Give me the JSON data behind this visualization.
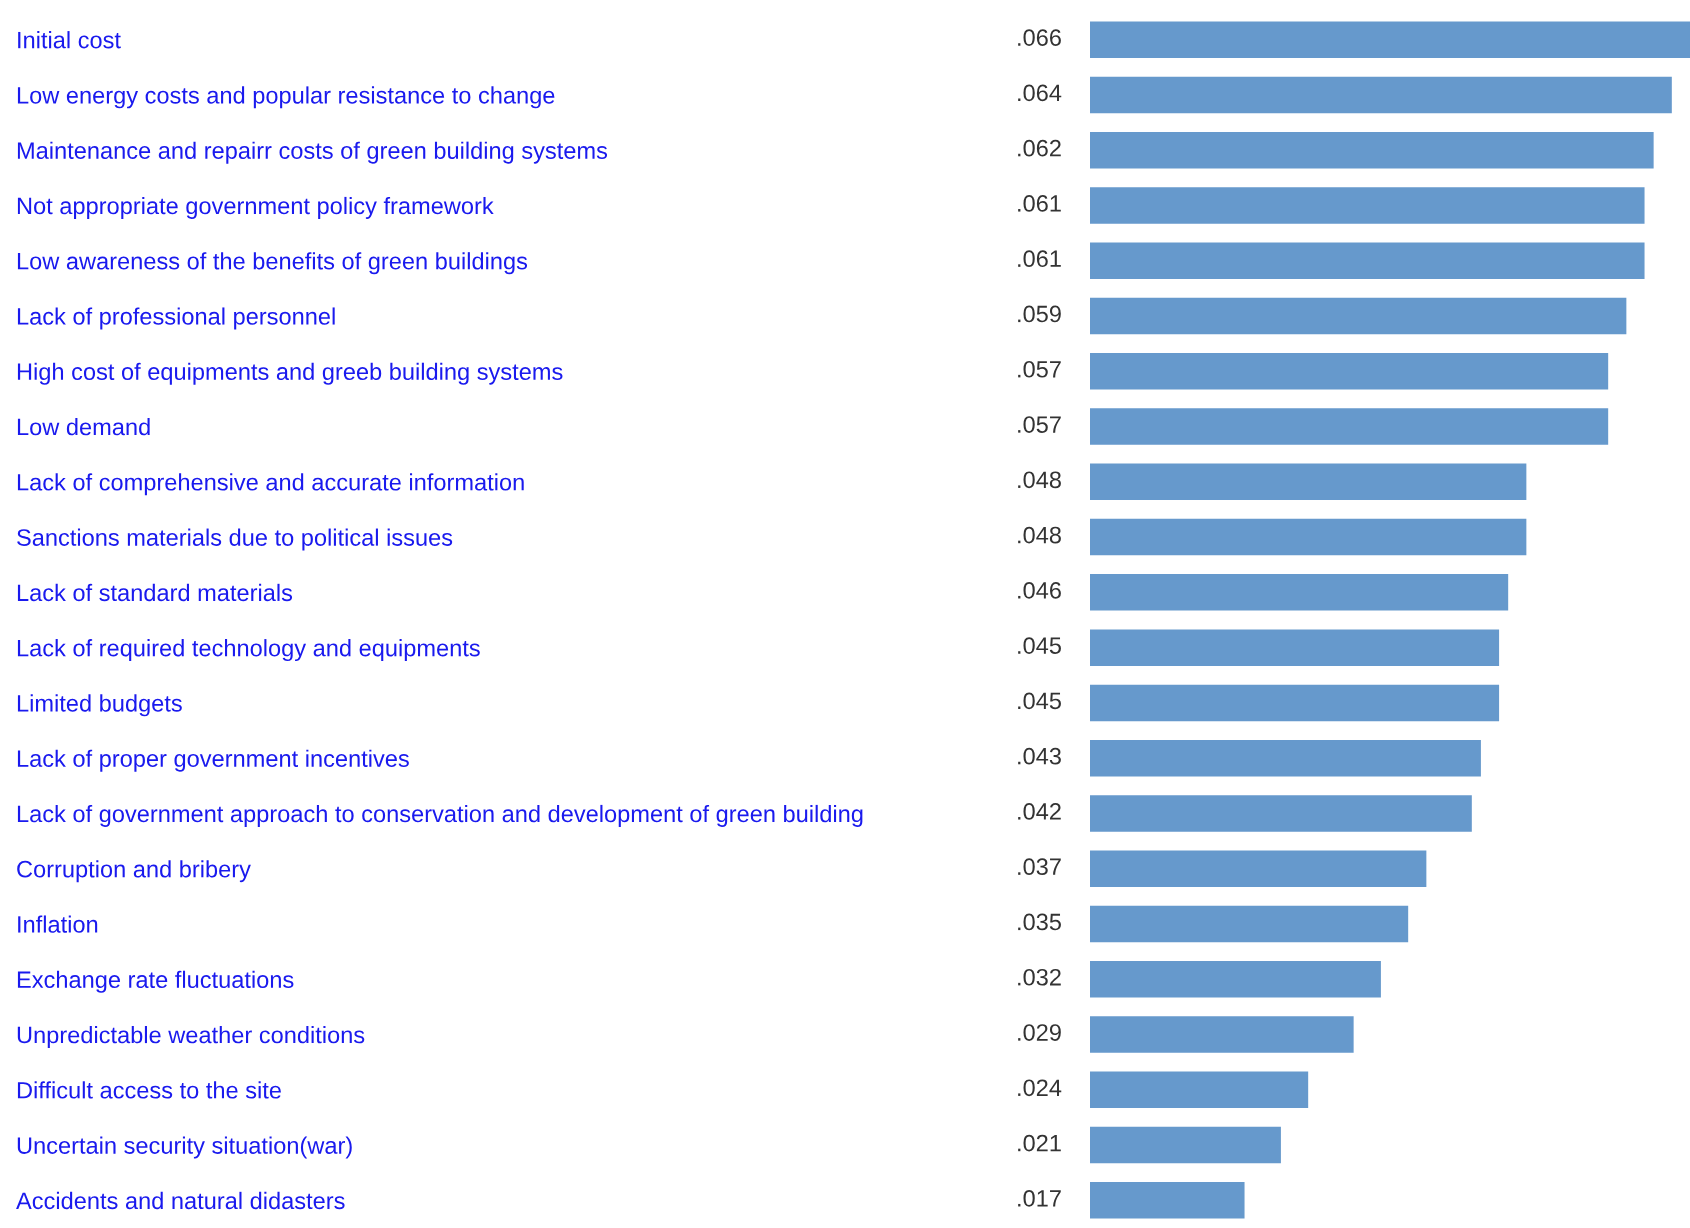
{
  "chart_data": {
    "type": "bar",
    "orientation": "horizontal",
    "color": "#6699cc",
    "tick_labels": "y",
    "categories": [
      "Initial cost",
      "Low energy costs and popular resistance to change",
      "Maintenance and repairr costs of green building systems",
      "Not appropriate government policy framework",
      "Low awareness of the benefits of green buildings",
      "Lack of professional personnel",
      "High cost of equipments and greeb building systems",
      "Low demand",
      "Lack of comprehensive and accurate information",
      "Sanctions materials due to political issues",
      "Lack of standard materials",
      "Lack of required technology and equipments",
      "Limited budgets",
      "Lack of proper government incentives",
      "Lack of government approach to conservation and development of green building",
      "Corruption and bribery",
      "Inflation",
      "Exchange rate fluctuations",
      "Unpredictable weather conditions",
      "Difficult access to the site",
      "Uncertain security situation(war)",
      "Accidents and natural didasters"
    ],
    "values": [
      0.066,
      0.064,
      0.062,
      0.061,
      0.061,
      0.059,
      0.057,
      0.057,
      0.048,
      0.048,
      0.046,
      0.045,
      0.045,
      0.043,
      0.042,
      0.037,
      0.035,
      0.032,
      0.029,
      0.024,
      0.021,
      0.017
    ],
    "value_labels": [
      ".066",
      ".064",
      ".062",
      ".061",
      ".061",
      ".059",
      ".057",
      ".057",
      ".048",
      ".048",
      ".046",
      ".045",
      ".045",
      ".043",
      ".042",
      ".037",
      ".035",
      ".032",
      ".029",
      ".024",
      ".021",
      ".017"
    ]
  }
}
